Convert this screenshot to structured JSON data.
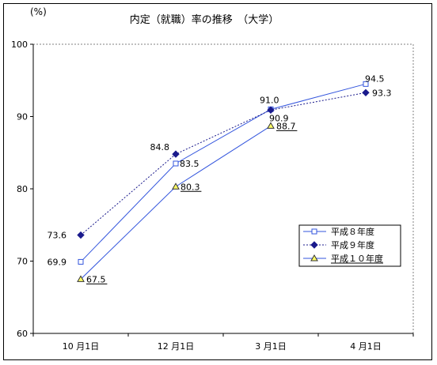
{
  "chart_data": {
    "type": "line",
    "title": "内定（就職）率の推移　（大学）",
    "ylabel": "(%)",
    "xlabel": "",
    "categories": [
      "10 月1日",
      "12 月1日",
      "3 月1日",
      "4 月1日"
    ],
    "ylim": [
      60,
      100
    ],
    "yticks": [
      60,
      70,
      80,
      90,
      100
    ],
    "grid": false,
    "legend_position": "right",
    "series": [
      {
        "name": "平成８年度",
        "values": [
          69.9,
          83.5,
          91.0,
          94.5
        ],
        "labels": [
          "69.9",
          "83.5",
          "91.0",
          "94.5"
        ],
        "color": "#3355dd",
        "marker": "square",
        "line_style": "solid"
      },
      {
        "name": "平成９年度",
        "values": [
          73.6,
          84.8,
          90.9,
          93.3
        ],
        "labels": [
          "73.6",
          "84.8",
          "90.9",
          "93.3"
        ],
        "color": "#1a1a8c",
        "marker": "diamond",
        "line_style": "dotted"
      },
      {
        "name": "平成１０年度",
        "values": [
          67.5,
          80.3,
          88.7,
          null
        ],
        "labels": [
          "67.5",
          "80.3",
          "88.7",
          ""
        ],
        "color": "#3355dd",
        "marker": "triangle",
        "line_style": "solid",
        "underlined": true
      }
    ]
  }
}
